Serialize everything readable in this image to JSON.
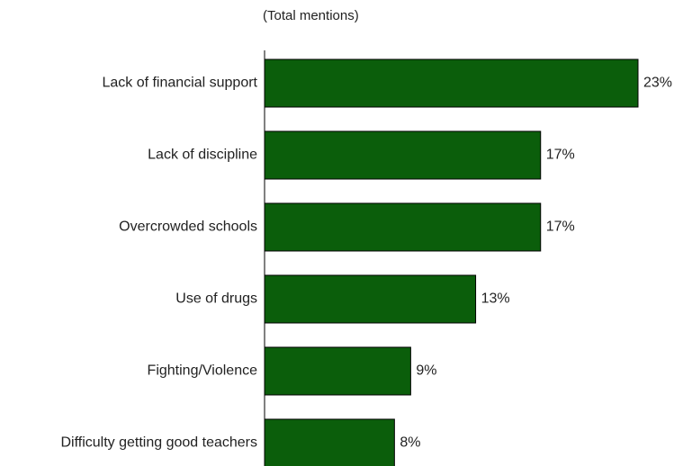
{
  "chart_data": {
    "type": "bar",
    "orientation": "horizontal",
    "subtitle": "(Total mentions)",
    "categories": [
      "Lack of financial support",
      "Lack of discipline",
      "Overcrowded schools",
      "Use of drugs",
      "Fighting/Violence",
      "Difficulty getting good teachers"
    ],
    "values": [
      23,
      17,
      17,
      13,
      9,
      8
    ],
    "value_labels": [
      "23%",
      "17%",
      "17%",
      "13%",
      "9%",
      "8%"
    ],
    "xlim": [
      0,
      23
    ],
    "grid": false,
    "bar_color": "#0b5e0b"
  }
}
